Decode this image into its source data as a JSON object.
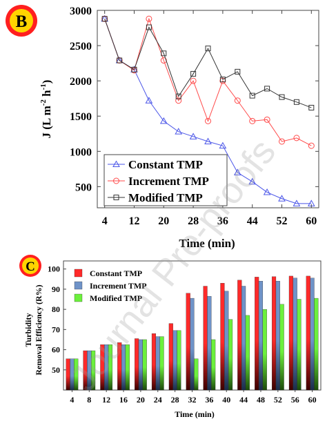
{
  "watermark": "Journal Pre-proofs",
  "charts": [
    {
      "badge": "B",
      "type": "line",
      "xlabel": "Time (min)",
      "ylabel_main": "J (L m",
      "ylabel_sup1": "-2",
      "ylabel_mid": " h",
      "ylabel_sup2": "-1",
      "ylabel_end": ")",
      "xlim": [
        2,
        62
      ],
      "ylim": [
        200,
        3000
      ],
      "xticks": [
        4,
        12,
        20,
        28,
        36,
        44,
        52,
        60
      ],
      "yticks": [
        500,
        1000,
        1500,
        2000,
        2500,
        3000
      ],
      "x": [
        4,
        8,
        12,
        16,
        20,
        24,
        28,
        32,
        36,
        40,
        44,
        48,
        52,
        56,
        60
      ],
      "legend_position": "bottom-left",
      "series": [
        {
          "name": "Constant TMP",
          "color": "#4a55e8",
          "marker": "triangle",
          "values": [
            2880,
            2290,
            2160,
            1720,
            1430,
            1280,
            1210,
            1140,
            1080,
            700,
            570,
            420,
            330,
            260,
            260
          ]
        },
        {
          "name": "Increment TMP",
          "color": "#ff4a4a",
          "marker": "circle",
          "values": [
            2880,
            2290,
            2150,
            2880,
            2290,
            1720,
            2000,
            1430,
            2000,
            1720,
            1430,
            1450,
            1140,
            1190,
            1080
          ]
        },
        {
          "name": "Modified TMP",
          "color": "#333333",
          "marker": "square",
          "values": [
            2880,
            2290,
            2160,
            2760,
            2390,
            1780,
            2100,
            2460,
            2020,
            2130,
            1790,
            1890,
            1770,
            1700,
            1620
          ]
        }
      ]
    },
    {
      "badge": "C",
      "type": "bar",
      "xlabel": "Time (min)",
      "ylabel_line1": "Turbidity",
      "ylabel_line2": "Removal Efficiency (R%)",
      "categories": [
        "4",
        "8",
        "12",
        "16",
        "20",
        "24",
        "28",
        "32",
        "36",
        "40",
        "44",
        "48",
        "52",
        "56",
        "60"
      ],
      "ylim": [
        40,
        104
      ],
      "yticks": [
        50,
        60,
        70,
        80,
        90,
        100
      ],
      "legend_position": "top-left",
      "series": [
        {
          "name": "Constant TMP",
          "color_top": "#ff2a2a",
          "color_bottom": "#3a0000",
          "values": [
            55.5,
            59.5,
            62.5,
            63.5,
            65.5,
            68,
            73,
            88,
            91.5,
            93,
            94.5,
            96,
            96.2,
            96.5,
            96.5
          ]
        },
        {
          "name": "Increment TMP",
          "color_top": "#6f93c8",
          "color_bottom": "#1a2c4a",
          "values": [
            55.5,
            59.5,
            62.5,
            62.5,
            65,
            66.5,
            69.5,
            85.5,
            86.5,
            89,
            91.5,
            94,
            94,
            95.5,
            95.5
          ]
        },
        {
          "name": "Modified TMP",
          "color_top": "#6cf03c",
          "color_bottom": "#1b4a0a",
          "values": [
            55.5,
            59.5,
            62.5,
            62.5,
            65,
            66.5,
            69.5,
            55.5,
            65,
            75,
            77,
            80,
            82.5,
            85,
            85.5
          ]
        }
      ]
    }
  ]
}
